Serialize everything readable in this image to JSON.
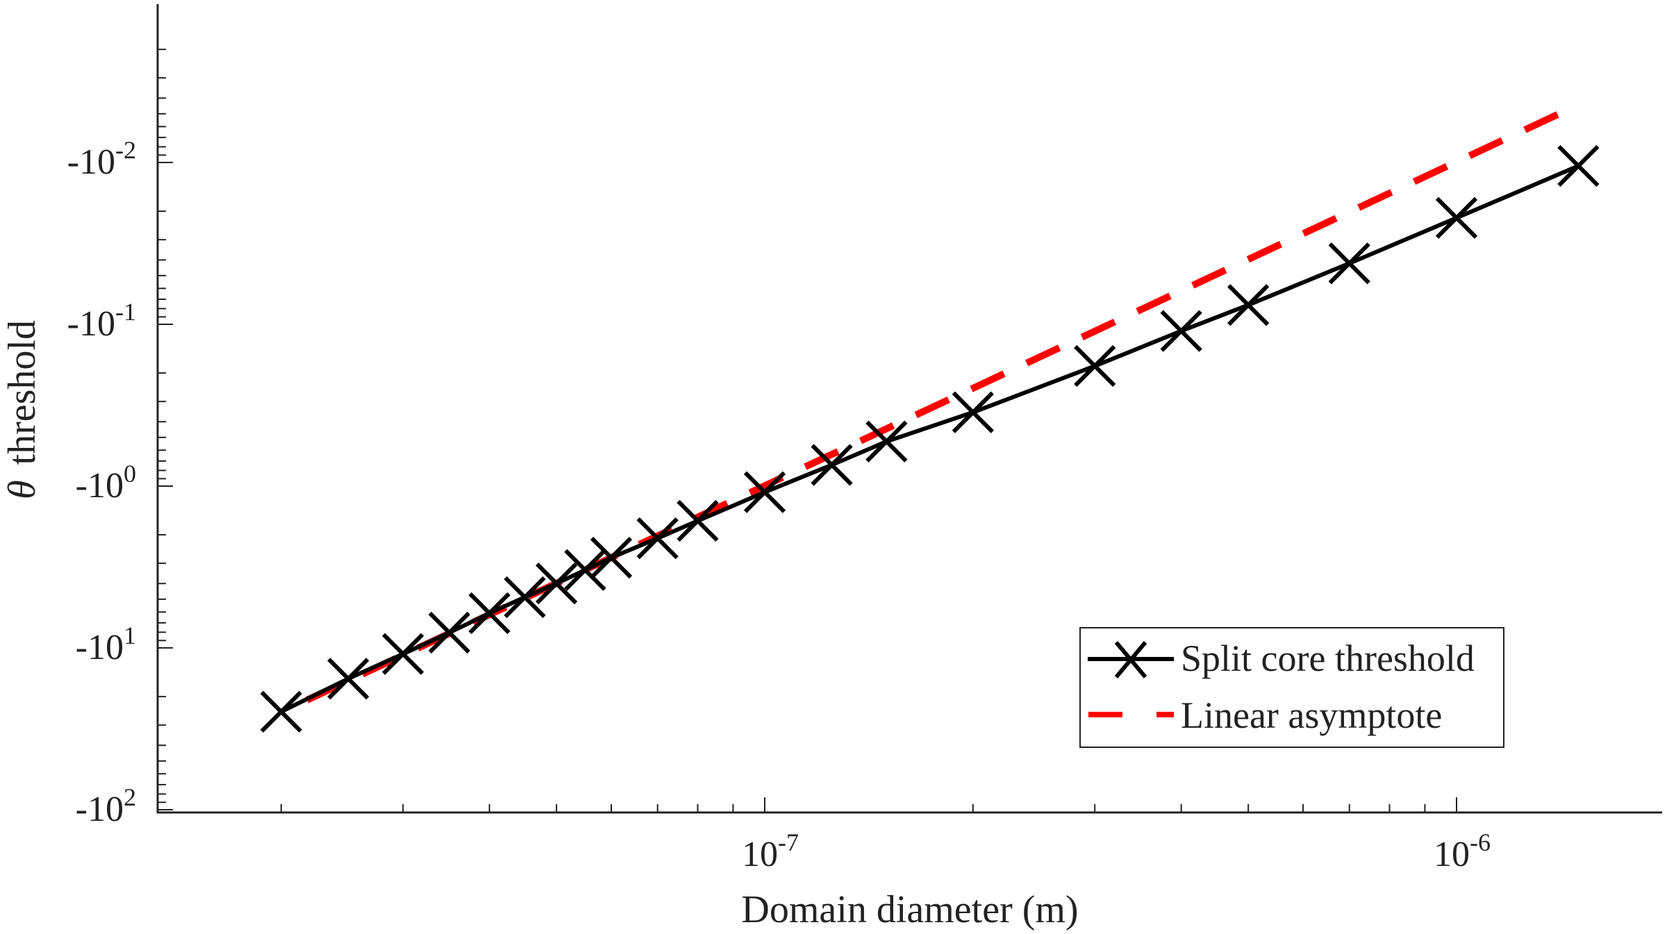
{
  "chart_data": {
    "type": "line",
    "title": "",
    "xlabel": "Domain diameter (m)",
    "ylabel_symbol": "θ",
    "ylabel": "threshold",
    "xscale": "log",
    "yscale": "log (negative values, magnitude increasing downward)",
    "xlim": [
      1.4e-08,
      2.2e-06
    ],
    "ylim": [
      -0.00105,
      -100
    ],
    "grid": false,
    "legend_position": "lower right",
    "x_ticks": [
      {
        "value": 1e-07,
        "base": "10",
        "exp": "-7"
      },
      {
        "value": 1e-06,
        "base": "10",
        "exp": "-6"
      }
    ],
    "y_ticks": [
      {
        "value": -0.01,
        "base": "-10",
        "exp": "-2"
      },
      {
        "value": -0.1,
        "base": "-10",
        "exp": "-1"
      },
      {
        "value": -1,
        "base": "-10",
        "exp": "0"
      },
      {
        "value": -10,
        "base": "-10",
        "exp": "1"
      },
      {
        "value": -100,
        "base": "-10",
        "exp": "2"
      }
    ],
    "series": [
      {
        "name": "Split core threshold",
        "color": "#000000",
        "style": "solid",
        "marker": "x",
        "x": [
          2e-08,
          2.5e-08,
          3e-08,
          3.5e-08,
          4e-08,
          4.5e-08,
          5e-08,
          5.5e-08,
          6e-08,
          7e-08,
          8e-08,
          1e-07,
          1.25e-07,
          1.5e-07,
          2e-07,
          3e-07,
          4e-07,
          5e-07,
          7e-07,
          1e-06,
          1.5e-06
        ],
        "values": [
          -24.8,
          -15.5,
          -10.9,
          -8.05,
          -6.1,
          -4.86,
          -4.0,
          -3.3,
          -2.77,
          -2.1,
          -1.64,
          -1.09,
          -0.74,
          -0.53,
          -0.35,
          -0.181,
          -0.11,
          -0.076,
          -0.042,
          -0.022,
          -0.0105
        ]
      },
      {
        "name": "Linear asymptote",
        "color": "#ff0000",
        "style": "dashed",
        "marker": "none",
        "x": [
          2.18e-08,
          1.5e-06
        ],
        "values": [
          -21.0,
          -0.0044
        ]
      }
    ]
  },
  "legend": {
    "items": [
      {
        "label": "Split core threshold"
      },
      {
        "label": "Linear asymptote"
      }
    ]
  }
}
